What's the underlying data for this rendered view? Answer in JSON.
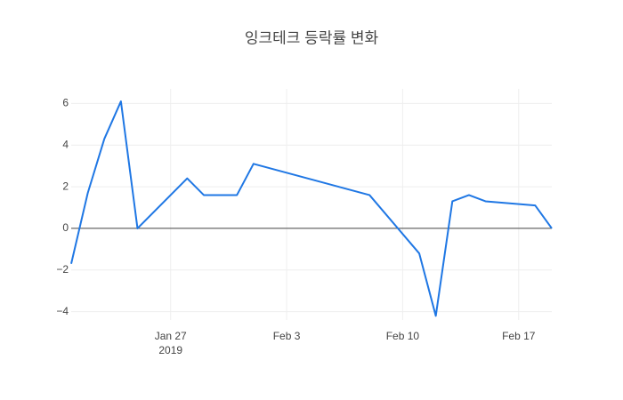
{
  "chart_data": {
    "type": "line",
    "title": "잉크테크 등락률 변화",
    "x": [
      "2019-01-21",
      "2019-01-22",
      "2019-01-23",
      "2019-01-24",
      "2019-01-25",
      "2019-01-28",
      "2019-01-29",
      "2019-01-31",
      "2019-02-01",
      "2019-02-08",
      "2019-02-11",
      "2019-02-12",
      "2019-02-13",
      "2019-02-14",
      "2019-02-15",
      "2019-02-18",
      "2019-02-19"
    ],
    "series": [
      {
        "color": "#1f77e4",
        "values": [
          -1.7,
          1.7,
          4.3,
          6.1,
          0,
          2.4,
          1.6,
          1.6,
          3.1,
          1.6,
          -1.2,
          -4.2,
          1.3,
          1.6,
          1.3,
          1.1,
          0
        ]
      }
    ],
    "xlim": [
      "2019-01-21",
      "2019-02-19"
    ],
    "xticks": [
      {
        "value": "2019-01-27",
        "label": "Jan 27",
        "sublabel": "2019"
      },
      {
        "value": "2019-02-03",
        "label": "Feb 3"
      },
      {
        "value": "2019-02-10",
        "label": "Feb 10"
      },
      {
        "value": "2019-02-17",
        "label": "Feb 17"
      }
    ],
    "ylim": [
      -4.4,
      6.7
    ],
    "yticks": [
      {
        "value": -4,
        "label": "−4"
      },
      {
        "value": -2,
        "label": "−2"
      },
      0,
      2,
      4,
      6
    ],
    "grid": true
  }
}
